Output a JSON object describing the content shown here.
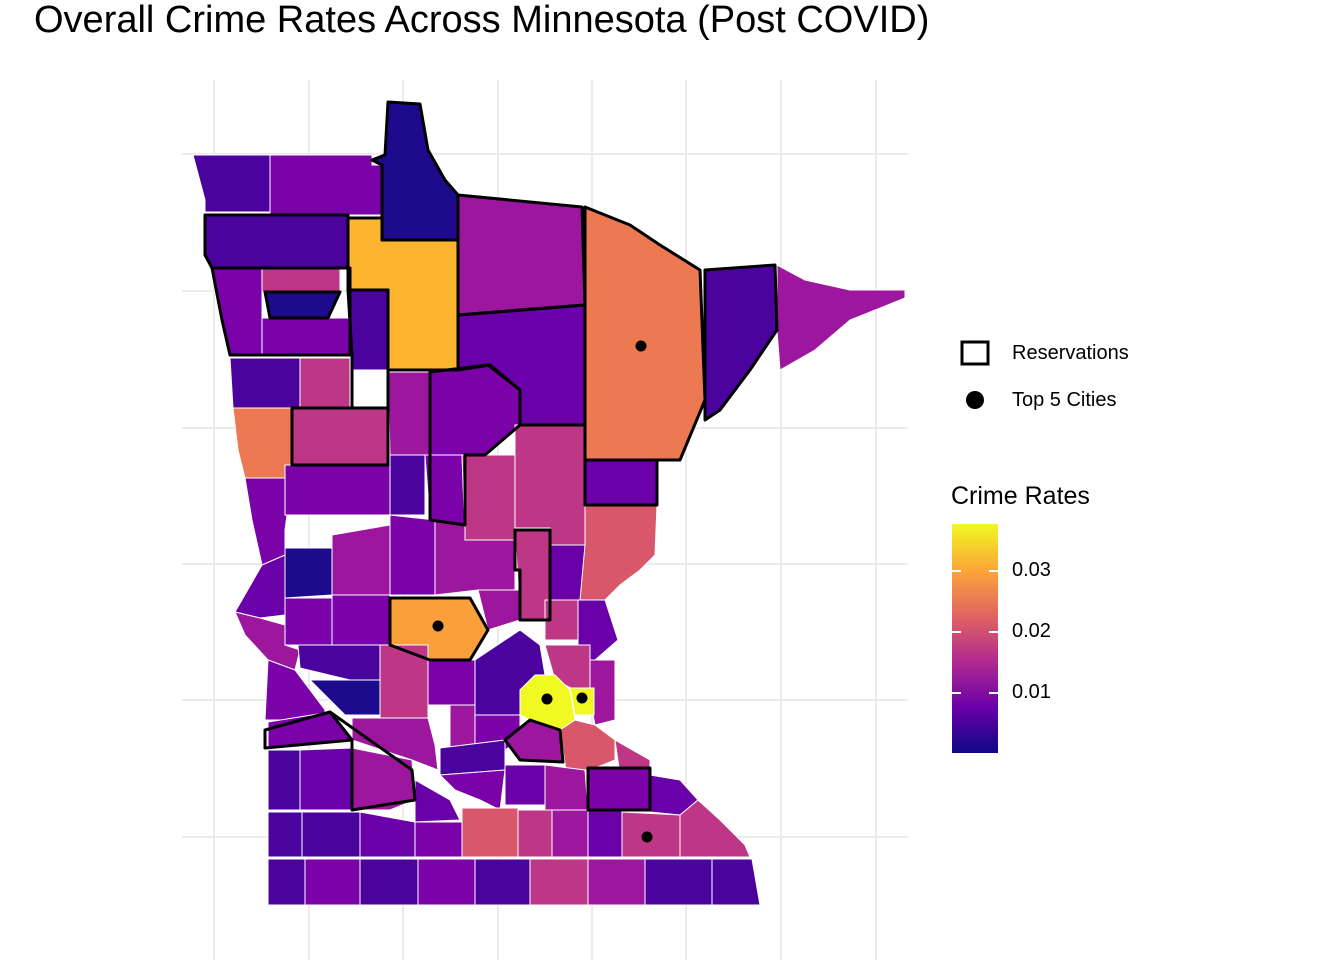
{
  "title": "Overall Crime Rates Across Minnesota (Post COVID)",
  "legend": {
    "reservations_label": "Reservations",
    "cities_label": "Top 5 Cities",
    "colorbar_title": "Crime Rates",
    "ticks": [
      {
        "label": "0.03",
        "value": 0.03
      },
      {
        "label": "0.02",
        "value": 0.02
      },
      {
        "label": "0.01",
        "value": 0.01
      }
    ],
    "range": [
      0.0005,
      0.0375
    ],
    "palette": [
      "#0d0887",
      "#6a00a8",
      "#b12a90",
      "#e16462",
      "#fca636",
      "#f0f921"
    ]
  },
  "map": {
    "grid": true,
    "fill_scale": "plasma",
    "top_cities_count": 5,
    "counties_shown": "Minnesota counties",
    "highest_rate_region": "Twin Cities metro",
    "colors": {
      "very_low": "#1e0a8c",
      "low": "#4b039e",
      "low_mid": "#7a02a8",
      "mid": "#9c179e",
      "mid_high": "#bd3786",
      "high": "#d8576b",
      "higher": "#ed7953",
      "orange": "#fb9f3a",
      "gold": "#fdb42f",
      "top": "#f0f921"
    }
  }
}
